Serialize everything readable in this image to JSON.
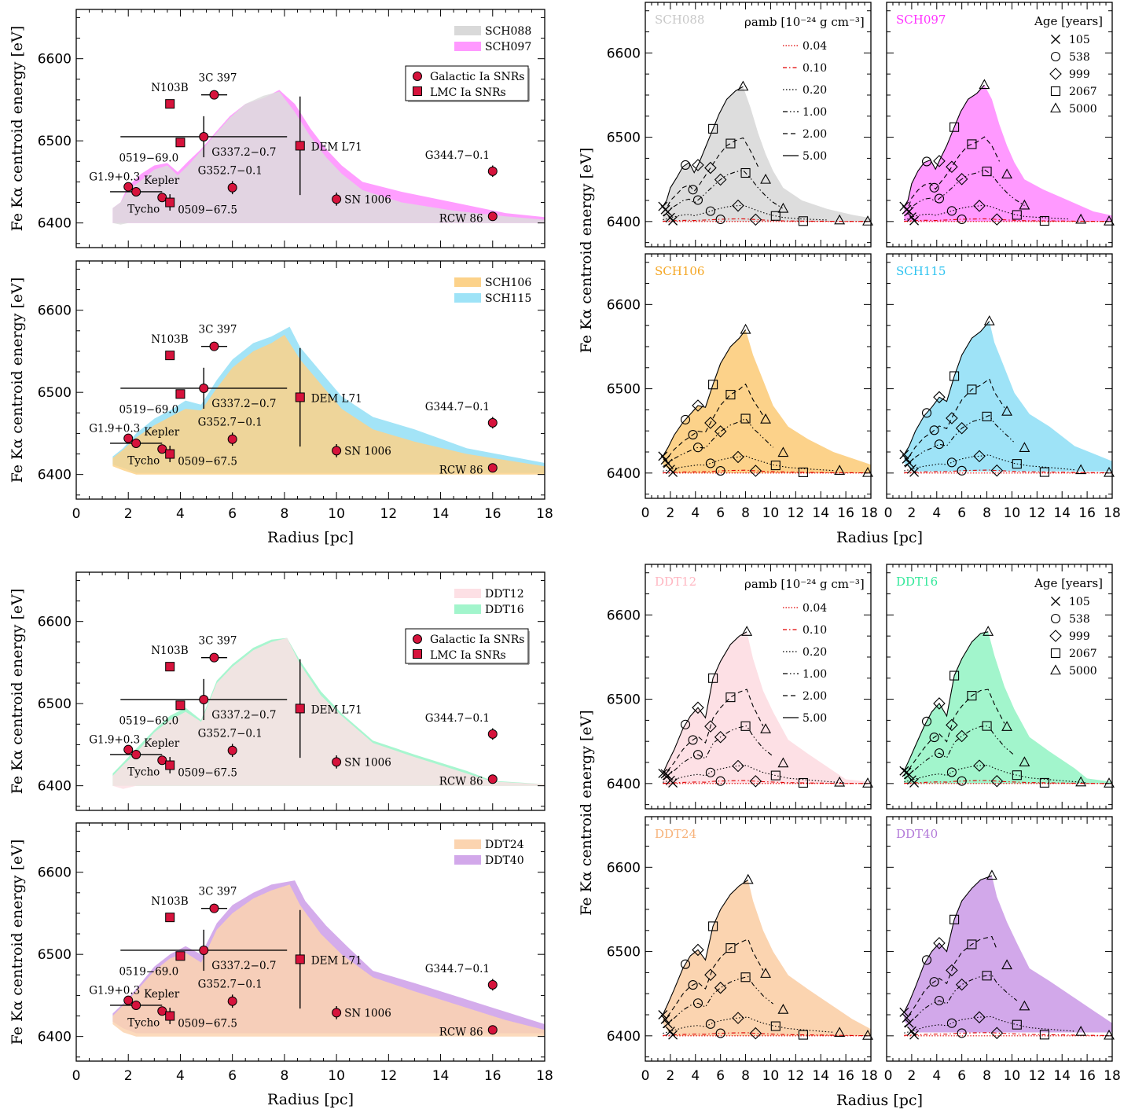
{
  "ylabel": "Fe Kα centroid energy [eV]",
  "xlabel": "Radius [pc]",
  "left_panels": [
    {
      "legend": [
        {
          "name": "SCH088",
          "color": "#d9d9d9"
        },
        {
          "name": "SCH097",
          "color": "#ff99ff"
        }
      ],
      "symbol_legend": true
    },
    {
      "legend": [
        {
          "name": "SCH106",
          "color": "#fcd28a"
        },
        {
          "name": "SCH115",
          "color": "#9ee3f7"
        }
      ],
      "symbol_legend": false
    },
    {
      "legend": [
        {
          "name": "DDT12",
          "color": "#fde0e5"
        },
        {
          "name": "DDT16",
          "color": "#a2f5cc"
        }
      ],
      "symbol_legend": true
    },
    {
      "legend": [
        {
          "name": "DDT24",
          "color": "#fbd4b0"
        },
        {
          "name": "DDT40",
          "color": "#d2a8ea"
        }
      ],
      "symbol_legend": false
    }
  ],
  "symbol_legend": {
    "galactic": "Galactic Ia SNRs",
    "lmc": "LMC Ia SNRs"
  },
  "density_legend": {
    "title": "ρamb [10⁻²⁴ g cm⁻³]",
    "items": [
      {
        "label": "0.04",
        "style": "dotted-red"
      },
      {
        "label": "0.10",
        "style": "dashdot-red"
      },
      {
        "label": "0.20",
        "style": "dotted"
      },
      {
        "label": "1.00",
        "style": "dashdotdot"
      },
      {
        "label": "2.00",
        "style": "dashed"
      },
      {
        "label": "5.00",
        "style": "solid"
      }
    ]
  },
  "age_legend": {
    "title": "Age [years]",
    "items": [
      {
        "label": "105",
        "marker": "x"
      },
      {
        "label": "538",
        "marker": "circle"
      },
      {
        "label": "999",
        "marker": "diamond"
      },
      {
        "label": "2067",
        "marker": "square"
      },
      {
        "label": "5000",
        "marker": "triangle"
      }
    ]
  },
  "right_panels": [
    {
      "model": "SCH088",
      "color": "#c8c8c8",
      "fill": "#dddddd"
    },
    {
      "model": "SCH097",
      "color": "#ff33ff",
      "fill": "#ff99ff"
    },
    {
      "model": "SCH106",
      "color": "#f5a623",
      "fill": "#fcd28a"
    },
    {
      "model": "SCH115",
      "color": "#2ec3f0",
      "fill": "#9ee3f7"
    },
    {
      "model": "DDT12",
      "color": "#ffb6c1",
      "fill": "#fde0e5"
    },
    {
      "model": "DDT16",
      "color": "#33e89a",
      "fill": "#a2f5cc"
    },
    {
      "model": "DDT24",
      "color": "#f7b27a",
      "fill": "#fbd4b0"
    },
    {
      "model": "DDT40",
      "color": "#b37ad9",
      "fill": "#d2a8ea"
    }
  ],
  "chart_data": {
    "type": "scatter",
    "xlabel": "Radius [pc]",
    "ylabel": "Fe Kα centroid energy [eV]",
    "xlim_left": [
      0,
      18
    ],
    "xlim_right": [
      0,
      18
    ],
    "ylim": [
      6370,
      6660
    ],
    "xticks_left": [
      "0",
      "2",
      "4",
      "6",
      "8",
      "10",
      "12",
      "14",
      "16",
      "18"
    ],
    "xticks_right": [
      "0",
      "2",
      "4",
      "6",
      "8",
      "10",
      "12",
      "14",
      "16",
      "18"
    ],
    "yticks": [
      "6400",
      "6500",
      "6600"
    ],
    "snrs": [
      {
        "name": "3C 397",
        "x": 5.3,
        "y": 6556,
        "xerr": 0.5,
        "yerr": 0,
        "type": "galactic"
      },
      {
        "name": "N103B",
        "x": 3.6,
        "y": 6545,
        "xerr": 0,
        "yerr": 0,
        "type": "lmc"
      },
      {
        "name": "0519−69.0",
        "x": 4.0,
        "y": 6498,
        "xerr": 0,
        "yerr": 0,
        "type": "lmc"
      },
      {
        "name": "G337.2−0.7",
        "x": 4.9,
        "y": 6505,
        "xerr": 3.2,
        "yerr": 25,
        "type": "galactic"
      },
      {
        "name": "DEM L71",
        "x": 8.6,
        "y": 6494,
        "xerr": 0,
        "yerr": 60,
        "type": "lmc"
      },
      {
        "name": "G344.7−0.1",
        "x": 16.0,
        "y": 6463,
        "xerr": 0,
        "yerr": 7,
        "type": "galactic"
      },
      {
        "name": "G1.9+0.3",
        "x": 2.0,
        "y": 6444,
        "xerr": 0,
        "yerr": 0,
        "type": "galactic"
      },
      {
        "name": "Kepler",
        "x": 2.3,
        "y": 6438,
        "xerr": 1.0,
        "yerr": 0,
        "type": "galactic"
      },
      {
        "name": "G352.7−0.1",
        "x": 6.0,
        "y": 6443,
        "xerr": 0,
        "yerr": 8,
        "type": "galactic"
      },
      {
        "name": "Tycho",
        "x": 3.3,
        "y": 6431,
        "xerr": 0,
        "yerr": 0,
        "type": "galactic"
      },
      {
        "name": "0509−67.5",
        "x": 3.6,
        "y": 6425,
        "xerr": 0,
        "yerr": 10,
        "type": "lmc"
      },
      {
        "name": "SN 1006",
        "x": 10.0,
        "y": 6429,
        "xerr": 0,
        "yerr": 8,
        "type": "galactic"
      },
      {
        "name": "RCW 86",
        "x": 16.0,
        "y": 6408,
        "xerr": 0,
        "yerr": 0,
        "type": "galactic"
      }
    ],
    "envelopes": {
      "SCH088": {
        "x": [
          1.4,
          1.7,
          2.0,
          2.5,
          3.0,
          3.5,
          3.9,
          4.3,
          4.8,
          5.4,
          5.9,
          6.5,
          7.2,
          7.8,
          8.4,
          9.0,
          9.6,
          10.2,
          11.0,
          12.5,
          14.5,
          16.5,
          18.0
        ],
        "upper": [
          6418,
          6425,
          6440,
          6452,
          6465,
          6470,
          6458,
          6470,
          6488,
          6510,
          6528,
          6545,
          6555,
          6560,
          6535,
          6505,
          6480,
          6460,
          6440,
          6425,
          6415,
          6408,
          6404
        ],
        "lower": [
          6400,
          6398,
          6400,
          6400,
          6400,
          6400,
          6400,
          6400,
          6400,
          6400,
          6400,
          6400,
          6400,
          6400,
          6400,
          6400,
          6400,
          6400,
          6400,
          6400,
          6400,
          6400,
          6400
        ]
      },
      "SCH097": {
        "x": [
          1.4,
          1.7,
          2.0,
          2.5,
          3.0,
          3.5,
          3.9,
          4.3,
          4.8,
          5.4,
          5.9,
          6.5,
          7.2,
          7.8,
          8.4,
          9.0,
          9.6,
          10.2,
          11.0,
          12.5,
          14.5,
          16.5,
          18.0
        ],
        "upper": [
          6418,
          6425,
          6445,
          6460,
          6470,
          6473,
          6462,
          6475,
          6490,
          6512,
          6530,
          6545,
          6552,
          6562,
          6545,
          6515,
          6490,
          6470,
          6450,
          6438,
          6425,
          6412,
          6407
        ],
        "lower": [
          6400,
          6400,
          6400,
          6400,
          6400,
          6400,
          6400,
          6400,
          6400,
          6400,
          6400,
          6400,
          6400,
          6400,
          6400,
          6400,
          6400,
          6400,
          6400,
          6400,
          6400,
          6400,
          6400
        ]
      },
      "SCH106": {
        "x": [
          1.4,
          1.8,
          2.3,
          3.0,
          3.6,
          4.2,
          4.8,
          5.4,
          6.0,
          6.8,
          7.5,
          8.0,
          8.6,
          9.4,
          10.2,
          11.4,
          13.0,
          15.0,
          18.0
        ],
        "upper": [
          6420,
          6430,
          6445,
          6460,
          6470,
          6480,
          6478,
          6505,
          6530,
          6550,
          6560,
          6570,
          6540,
          6510,
          6480,
          6455,
          6440,
          6425,
          6410
        ],
        "lower": [
          6410,
          6405,
          6400,
          6400,
          6400,
          6400,
          6400,
          6400,
          6400,
          6400,
          6400,
          6400,
          6400,
          6400,
          6400,
          6400,
          6400,
          6400,
          6400
        ]
      },
      "SCH115": {
        "x": [
          1.4,
          1.8,
          2.3,
          3.0,
          3.6,
          4.2,
          4.8,
          5.4,
          6.0,
          6.8,
          7.5,
          8.2,
          8.6,
          9.4,
          10.2,
          11.4,
          13.0,
          15.0,
          18.0
        ],
        "upper": [
          6422,
          6432,
          6450,
          6468,
          6478,
          6490,
          6485,
          6515,
          6540,
          6560,
          6568,
          6580,
          6555,
          6525,
          6495,
          6470,
          6455,
          6432,
          6414
        ],
        "lower": [
          6412,
          6408,
          6402,
          6402,
          6402,
          6402,
          6402,
          6402,
          6402,
          6402,
          6402,
          6402,
          6402,
          6402,
          6402,
          6402,
          6402,
          6402,
          6402
        ]
      },
      "DDT12": {
        "x": [
          1.4,
          1.8,
          2.3,
          3.0,
          3.6,
          4.2,
          4.8,
          5.4,
          6.0,
          6.8,
          7.5,
          8.1,
          8.6,
          9.4,
          10.2,
          11.4,
          13.0,
          15.0,
          16.0,
          18.0
        ],
        "upper": [
          6412,
          6425,
          6440,
          6465,
          6480,
          6490,
          6478,
          6525,
          6545,
          6565,
          6575,
          6580,
          6548,
          6510,
          6485,
          6452,
          6435,
          6415,
          6405,
          6402
        ],
        "lower": [
          6400,
          6396,
          6400,
          6400,
          6400,
          6400,
          6400,
          6400,
          6400,
          6400,
          6400,
          6400,
          6400,
          6400,
          6400,
          6400,
          6400,
          6400,
          6400,
          6400
        ]
      },
      "DDT16": {
        "x": [
          1.4,
          1.8,
          2.3,
          3.0,
          3.6,
          4.2,
          4.8,
          5.4,
          6.0,
          6.8,
          7.5,
          8.1,
          8.6,
          9.4,
          10.2,
          11.4,
          13.0,
          15.0,
          16.0,
          18.0
        ],
        "upper": [
          6415,
          6428,
          6445,
          6468,
          6485,
          6495,
          6480,
          6528,
          6548,
          6568,
          6578,
          6580,
          6552,
          6515,
          6488,
          6455,
          6438,
          6418,
          6406,
          6402
        ],
        "lower": [
          6400,
          6400,
          6400,
          6400,
          6400,
          6400,
          6400,
          6400,
          6400,
          6400,
          6400,
          6400,
          6400,
          6400,
          6400,
          6400,
          6400,
          6400,
          6400,
          6400
        ]
      },
      "DDT24": {
        "x": [
          1.4,
          1.8,
          2.3,
          3.0,
          3.6,
          4.2,
          4.8,
          5.4,
          6.0,
          6.8,
          7.5,
          8.2,
          8.6,
          9.4,
          10.2,
          11.4,
          13.0,
          15.0,
          16.5,
          18.0
        ],
        "upper": [
          6425,
          6438,
          6455,
          6480,
          6495,
          6502,
          6490,
          6530,
          6550,
          6568,
          6578,
          6585,
          6560,
          6525,
          6500,
          6472,
          6455,
          6435,
          6420,
          6408
        ],
        "lower": [
          6415,
          6405,
          6400,
          6400,
          6400,
          6400,
          6400,
          6400,
          6400,
          6400,
          6400,
          6400,
          6400,
          6400,
          6400,
          6400,
          6400,
          6400,
          6400,
          6400
        ]
      },
      "DDT40": {
        "x": [
          1.4,
          1.8,
          2.3,
          3.0,
          3.6,
          4.2,
          4.8,
          5.4,
          6.0,
          6.8,
          7.5,
          8.4,
          8.8,
          9.6,
          10.4,
          11.4,
          13.0,
          15.0,
          16.5,
          18.0
        ],
        "upper": [
          6428,
          6440,
          6458,
          6485,
          6500,
          6510,
          6500,
          6538,
          6560,
          6575,
          6585,
          6590,
          6565,
          6535,
          6510,
          6480,
          6465,
          6445,
          6430,
          6415
        ],
        "lower": [
          6418,
          6410,
          6404,
          6404,
          6404,
          6404,
          6404,
          6404,
          6404,
          6404,
          6404,
          6404,
          6404,
          6404,
          6404,
          6404,
          6404,
          6404,
          6404,
          6404
        ]
      }
    }
  }
}
